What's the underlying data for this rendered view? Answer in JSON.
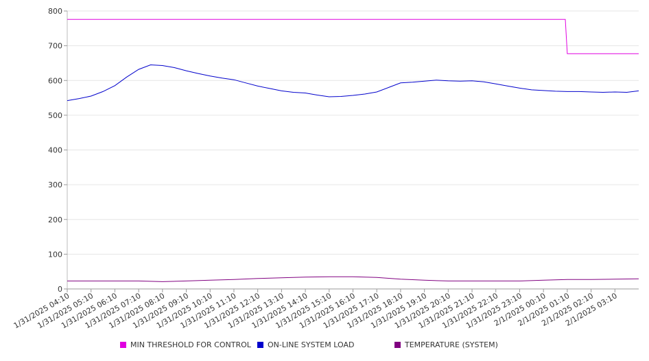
{
  "chart_data": {
    "type": "line",
    "y_axis": {
      "ticks": [
        0,
        100,
        200,
        300,
        400,
        500,
        600,
        700,
        800
      ],
      "ylim": [
        0,
        800
      ]
    },
    "x_axis": {
      "tick_labels": [
        "1/31/2025 04:10",
        "1/31/2025 05:10",
        "1/31/2025 06:10",
        "1/31/2025 07:10",
        "1/31/2025 08:10",
        "1/31/2025 09:10",
        "1/31/2025 10:10",
        "1/31/2025 11:10",
        "1/31/2025 12:10",
        "1/31/2025 13:10",
        "1/31/2025 14:10",
        "1/31/2025 15:10",
        "1/31/2025 16:10",
        "1/31/2025 17:10",
        "1/31/2025 18:10",
        "1/31/2025 19:10",
        "1/31/2025 20:10",
        "1/31/2025 21:10",
        "1/31/2025 22:10",
        "1/31/2025 23:10",
        "2/1/2025 00:10",
        "2/1/2025 01:10",
        "2/1/2025 02:10",
        "2/1/2025 03:10"
      ],
      "xlim": [
        "1/31/2025 04:10",
        "2/1/2025 04:10"
      ]
    },
    "grid": "horizontal",
    "legend_position": "bottom",
    "series": [
      {
        "name": "MIN THRESHOLD FOR CONTROL",
        "color": "#e000e0",
        "points": [
          [
            "1/31/2025 04:10",
            776
          ],
          [
            "2/1/2025 01:05",
            776
          ],
          [
            "2/1/2025 01:10",
            677
          ],
          [
            "2/1/2025 04:10",
            677
          ]
        ]
      },
      {
        "name": "ON-LINE SYSTEM LOAD",
        "color": "#0000cc",
        "points": [
          [
            "1/31/2025 04:10",
            542
          ],
          [
            "1/31/2025 04:40",
            548
          ],
          [
            "1/31/2025 05:10",
            555
          ],
          [
            "1/31/2025 05:40",
            568
          ],
          [
            "1/31/2025 06:10",
            585
          ],
          [
            "1/31/2025 06:40",
            610
          ],
          [
            "1/31/2025 07:10",
            632
          ],
          [
            "1/31/2025 07:40",
            645
          ],
          [
            "1/31/2025 08:10",
            643
          ],
          [
            "1/31/2025 08:40",
            637
          ],
          [
            "1/31/2025 09:10",
            628
          ],
          [
            "1/31/2025 09:40",
            620
          ],
          [
            "1/31/2025 10:10",
            613
          ],
          [
            "1/31/2025 10:40",
            607
          ],
          [
            "1/31/2025 11:10",
            602
          ],
          [
            "1/31/2025 11:40",
            593
          ],
          [
            "1/31/2025 12:10",
            584
          ],
          [
            "1/31/2025 12:40",
            577
          ],
          [
            "1/31/2025 13:10",
            570
          ],
          [
            "1/31/2025 13:40",
            566
          ],
          [
            "1/31/2025 14:10",
            564
          ],
          [
            "1/31/2025 14:40",
            558
          ],
          [
            "1/31/2025 15:10",
            553
          ],
          [
            "1/31/2025 15:40",
            554
          ],
          [
            "1/31/2025 16:10",
            557
          ],
          [
            "1/31/2025 16:40",
            561
          ],
          [
            "1/31/2025 17:10",
            567
          ],
          [
            "1/31/2025 17:40",
            580
          ],
          [
            "1/31/2025 18:10",
            593
          ],
          [
            "1/31/2025 18:40",
            595
          ],
          [
            "1/31/2025 19:10",
            598
          ],
          [
            "1/31/2025 19:40",
            601
          ],
          [
            "1/31/2025 20:10",
            599
          ],
          [
            "1/31/2025 20:40",
            598
          ],
          [
            "1/31/2025 21:10",
            599
          ],
          [
            "1/31/2025 21:40",
            596
          ],
          [
            "1/31/2025 22:10",
            590
          ],
          [
            "1/31/2025 22:40",
            584
          ],
          [
            "1/31/2025 23:10",
            578
          ],
          [
            "1/31/2025 23:40",
            573
          ],
          [
            "2/1/2025 00:10",
            571
          ],
          [
            "2/1/2025 00:40",
            569
          ],
          [
            "2/1/2025 01:10",
            568
          ],
          [
            "2/1/2025 01:40",
            568
          ],
          [
            "2/1/2025 02:10",
            567
          ],
          [
            "2/1/2025 02:40",
            566
          ],
          [
            "2/1/2025 03:10",
            567
          ],
          [
            "2/1/2025 03:40",
            566
          ],
          [
            "2/1/2025 04:10",
            570
          ]
        ]
      },
      {
        "name": "TEMPERATURE (SYSTEM)",
        "color": "#800080",
        "points": [
          [
            "1/31/2025 04:10",
            23
          ],
          [
            "1/31/2025 06:10",
            23
          ],
          [
            "1/31/2025 07:10",
            23
          ],
          [
            "1/31/2025 08:10",
            21
          ],
          [
            "1/31/2025 09:10",
            23
          ],
          [
            "1/31/2025 10:10",
            25
          ],
          [
            "1/31/2025 11:10",
            27
          ],
          [
            "1/31/2025 12:10",
            30
          ],
          [
            "1/31/2025 13:10",
            32
          ],
          [
            "1/31/2025 14:10",
            34
          ],
          [
            "1/31/2025 15:10",
            35
          ],
          [
            "1/31/2025 16:10",
            35
          ],
          [
            "1/31/2025 17:10",
            33
          ],
          [
            "1/31/2025 18:10",
            28
          ],
          [
            "1/31/2025 19:10",
            25
          ],
          [
            "1/31/2025 20:10",
            23
          ],
          [
            "1/31/2025 21:10",
            23
          ],
          [
            "1/31/2025 22:10",
            23
          ],
          [
            "1/31/2025 23:10",
            23
          ],
          [
            "2/1/2025 00:10",
            25
          ],
          [
            "2/1/2025 01:10",
            27
          ],
          [
            "2/1/2025 02:10",
            27
          ],
          [
            "2/1/2025 03:10",
            28
          ],
          [
            "2/1/2025 04:10",
            29
          ]
        ]
      }
    ]
  }
}
